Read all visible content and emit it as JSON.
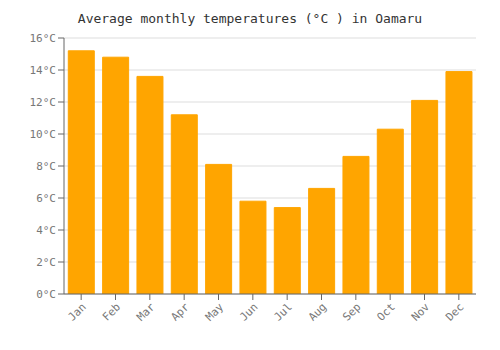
{
  "chart_data": {
    "type": "bar",
    "title": "Average monthly temperatures (°C ) in Oamaru",
    "categories": [
      "Jan",
      "Feb",
      "Mar",
      "Apr",
      "May",
      "Jun",
      "Jul",
      "Aug",
      "Sep",
      "Oct",
      "Nov",
      "Dec"
    ],
    "values": [
      15.2,
      14.8,
      13.6,
      11.2,
      8.1,
      5.8,
      5.4,
      6.6,
      8.6,
      10.3,
      12.1,
      13.9
    ],
    "color": "#FFA500",
    "ylim": [
      0,
      16
    ],
    "yticks": [
      {
        "value": 0,
        "label": "0°C"
      },
      {
        "value": 2,
        "label": "2°C"
      },
      {
        "value": 4,
        "label": "4°C"
      },
      {
        "value": 6,
        "label": "6°C"
      },
      {
        "value": 8,
        "label": "8°C"
      },
      {
        "value": 10,
        "label": "10°C"
      },
      {
        "value": 12,
        "label": "12°C"
      },
      {
        "value": 14,
        "label": "14°C"
      },
      {
        "value": 16,
        "label": "16°C"
      }
    ],
    "grid": true
  }
}
